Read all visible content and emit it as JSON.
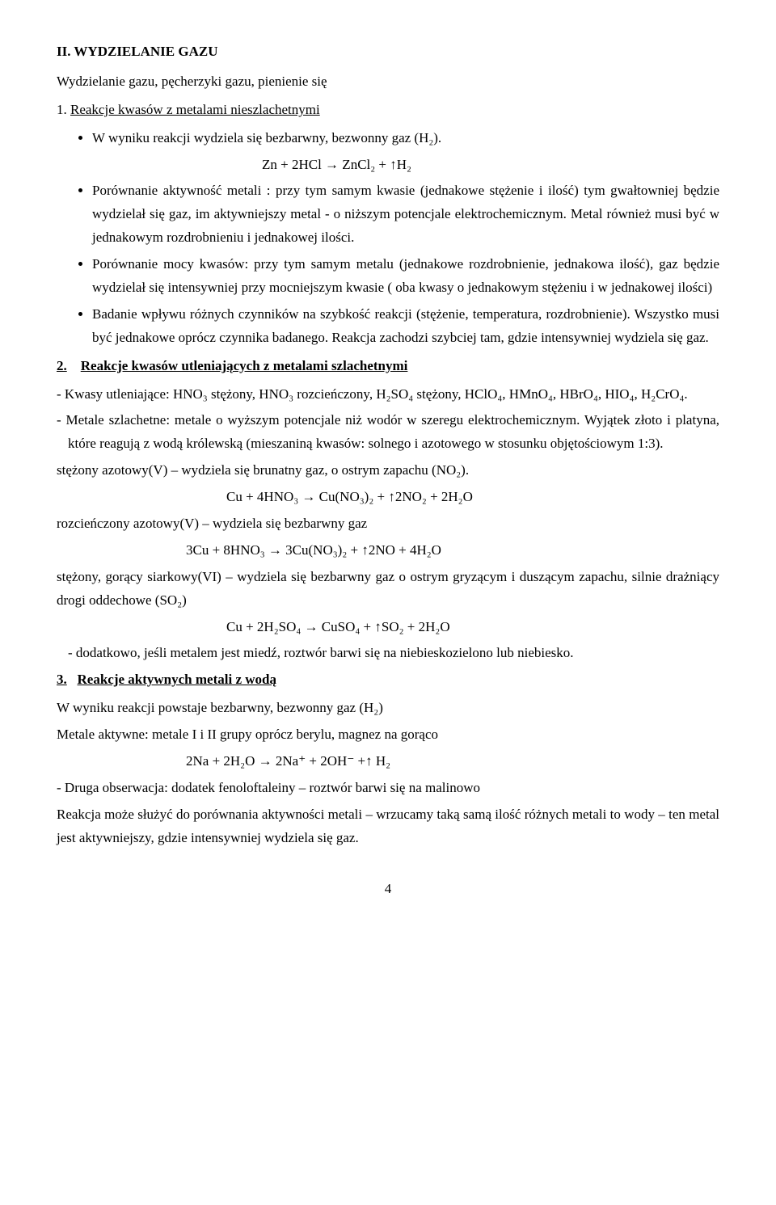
{
  "title": "II.    WYDZIELANIE  GAZU",
  "intro": "Wydzielanie gazu, pęcherzyki gazu, pienienie się",
  "sec1": {
    "num_prefix": "1.",
    "heading": "Reakcje kwasów z metalami nieszlachetnymi",
    "b1": "W wyniku reakcji wydziela się bezbarwny, bezwonny gaz (H₂).",
    "eq1": "Zn + 2HCl → ZnCl₂  + ↑H₂",
    "b2": "Porównanie aktywność metali : przy tym samym kwasie (jednakowe stężenie i ilość) tym gwałtowniej będzie wydzielał się gaz, im aktywniejszy metal  - o niższym potencjale elektrochemicznym. Metal również musi być w jednakowym rozdrobnieniu i jednakowej ilości.",
    "b3": "Porównanie mocy kwasów: przy tym samym metalu (jednakowe rozdrobnienie, jednakowa ilość), gaz będzie wydzielał się intensywniej przy mocniejszym kwasie ( oba kwasy o jednakowym stężeniu  i w jednakowej ilości)",
    "b4": "Badanie wpływu różnych czynników na szybkość reakcji (stężenie, temperatura, rozdrobnienie). Wszystko musi być jednakowe oprócz czynnika badanego. Reakcja zachodzi szybciej tam, gdzie intensywniej wydziela się gaz."
  },
  "sec2": {
    "num_prefix": "2.",
    "heading": "Reakcje kwasów utleniających z metalami szlachetnymi",
    "p1": "- Kwasy utleniające: HNO₃ stężony, HNO₃ rozcieńczony, H₂SO₄ stężony, HClO₄, HMnO₄, HBrO₄, HIO₄, H₂CrO₄.",
    "p2": "- Metale szlachetne: metale o wyższym potencjale niż wodór w szeregu elektrochemicznym. Wyjątek złoto i platyna, które reagują z  wodą królewską (mieszaniną kwasów: solnego i azotowego w stosunku objętościowym 1:3).",
    "p3": "stężony azotowy(V) – wydziela się brunatny  gaz, o ostrym zapachu (NO₂).",
    "eq2": "Cu + 4HNO₃  →  Cu(NO₃)₂ + ↑2NO₂ + 2H₂O",
    "p4": "rozcieńczony azotowy(V) – wydziela się bezbarwny gaz",
    "eq3": "3Cu + 8HNO₃ → 3Cu(NO₃)₂ + ↑2NO + 4H₂O",
    "p5": "stężony, gorący siarkowy(VI) – wydziela się bezbarwny gaz o ostrym gryzącym i duszącym zapachu, silnie drażniący drogi oddechowe (SO₂)",
    "eq4": "Cu + 2H₂SO₄ →  CuSO₄ + ↑SO₂ + 2H₂O",
    "p6": "-  dodatkowo, jeśli metalem jest miedź, roztwór barwi się na niebieskozielono lub niebiesko."
  },
  "sec3": {
    "num_prefix": "3.",
    "heading": "Reakcje aktywnych metali z wodą",
    "p1": "W wyniku reakcji powstaje bezbarwny, bezwonny gaz  (H₂)",
    "p2": "Metale aktywne: metale I i II grupy oprócz berylu, magnez na gorąco",
    "eq5": "2Na + 2H₂O → 2Na⁺  +  2OH⁻  +↑ H₂",
    "p3": "-  Druga  obserwacja: dodatek fenoloftaleiny – roztwór barwi się na malinowo",
    "p4": "Reakcja może służyć do porównania aktywności metali – wrzucamy taką samą ilość różnych metali to wody – ten metal jest aktywniejszy, gdzie intensywniej wydziela się gaz."
  },
  "page_number": "4"
}
